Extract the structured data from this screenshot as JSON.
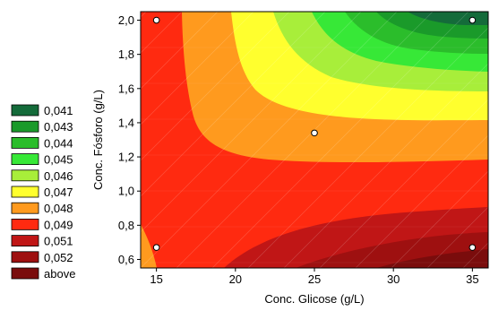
{
  "chart_data": {
    "type": "contour",
    "xlabel": "Conc. Glicose (g/L)",
    "ylabel": "Conc. Fósforo (g/L)",
    "xlim": [
      14,
      36
    ],
    "ylim": [
      0.55,
      2.05
    ],
    "x_ticks": [
      15,
      20,
      25,
      30,
      35
    ],
    "x_tick_labels": [
      "15",
      "20",
      "25",
      "30",
      "35"
    ],
    "y_ticks": [
      0.6,
      0.8,
      1.0,
      1.2,
      1.4,
      1.6,
      1.8,
      2.0
    ],
    "y_tick_labels": [
      "0,6",
      "0,8",
      "1,0",
      "1,2",
      "1,4",
      "1,6",
      "1,8",
      "2,0"
    ],
    "legend_position": "left",
    "legend": [
      {
        "label": "0,041",
        "color": "#146b3a"
      },
      {
        "label": "0,043",
        "color": "#1a9a2a"
      },
      {
        "label": "0,044",
        "color": "#2bbd2b"
      },
      {
        "label": "0,045",
        "color": "#37e837"
      },
      {
        "label": "0,046",
        "color": "#a8ee3a"
      },
      {
        "label": "0,047",
        "color": "#ffff2e"
      },
      {
        "label": "0,048",
        "color": "#ff9a1e"
      },
      {
        "label": "0,049",
        "color": "#ff2a10"
      },
      {
        "label": "0,051",
        "color": "#c01616"
      },
      {
        "label": "0,052",
        "color": "#9e1010"
      },
      {
        "label": "above",
        "color": "#7a0c0c"
      }
    ],
    "design_points": [
      {
        "x": 15,
        "y": 2.0
      },
      {
        "x": 35,
        "y": 2.0
      },
      {
        "x": 25,
        "y": 1.34
      },
      {
        "x": 15,
        "y": 0.67
      },
      {
        "x": 35,
        "y": 0.67
      }
    ],
    "grid": false
  }
}
